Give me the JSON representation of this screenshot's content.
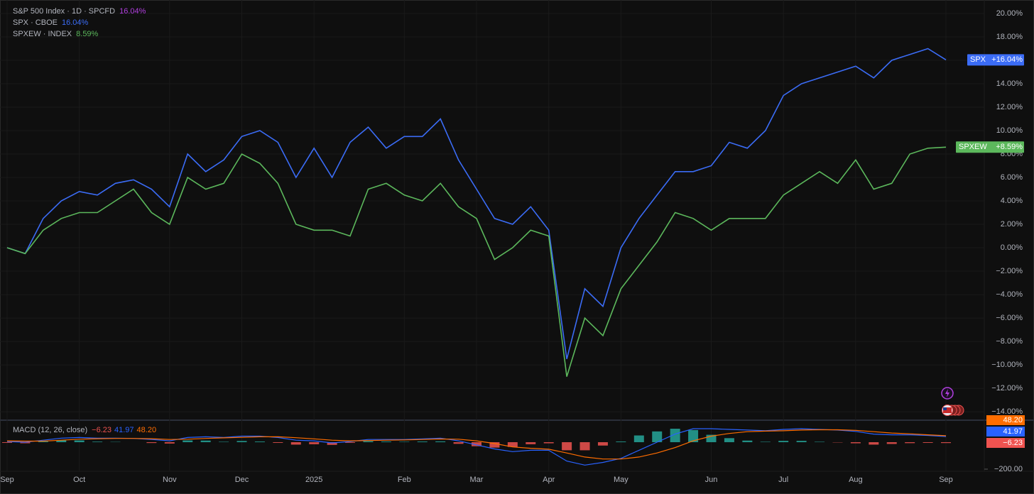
{
  "chart_data": [
    {
      "type": "line",
      "title": "S&P 500 Index · 1D · SPCFD",
      "title_value": 16.04,
      "title_value_label": "16.04%",
      "title_color": "#b23fe0",
      "categories": [
        "Sep",
        null,
        null,
        null,
        "Oct",
        null,
        null,
        null,
        null,
        "Nov",
        null,
        null,
        null,
        "Dec",
        null,
        null,
        null,
        "2025",
        null,
        null,
        null,
        null,
        "Feb",
        null,
        null,
        null,
        "Mar",
        null,
        null,
        null,
        "Apr",
        null,
        null,
        null,
        "May",
        null,
        null,
        null,
        null,
        "Jun",
        null,
        null,
        null,
        "Jul",
        null,
        null,
        null,
        "Aug",
        null,
        null,
        null,
        null,
        "Sep"
      ],
      "series": [
        {
          "name": "SPX",
          "source": "CBOE",
          "color": "#3b6cf6",
          "last_label": "16.04%",
          "badge_label": "+16.04%",
          "values": [
            0,
            -0.5,
            2.5,
            4,
            4.8,
            4.5,
            5.5,
            5.8,
            5,
            3.5,
            8,
            6.5,
            7.5,
            9.5,
            10,
            9,
            6,
            8.5,
            6,
            9,
            10.3,
            8.5,
            9.5,
            9.5,
            11,
            7.5,
            5,
            2.5,
            2,
            3.5,
            1.5,
            -9.5,
            -3.5,
            -5,
            0,
            2.5,
            4.5,
            6.5,
            6.5,
            7,
            9,
            8.5,
            10,
            13,
            14,
            14.5,
            15,
            15.5,
            14.5,
            16,
            16.5,
            17,
            16.04
          ]
        },
        {
          "name": "SPXEW",
          "source": "INDEX",
          "color": "#5cb85c",
          "last_label": "8.59%",
          "badge_label": "+8.59%",
          "values": [
            0,
            -0.5,
            1.5,
            2.5,
            3,
            3,
            4,
            5,
            3,
            2,
            6,
            5,
            5.5,
            8,
            7.2,
            5.5,
            2,
            1.5,
            1.5,
            1,
            5,
            5.5,
            4.5,
            4,
            5.5,
            3.5,
            2.5,
            -1,
            0,
            1.5,
            1,
            -11,
            -6,
            -7.5,
            -3.5,
            -1.5,
            0.5,
            3,
            2.5,
            1.5,
            2.5,
            2.5,
            2.5,
            4.5,
            5.5,
            6.5,
            5.5,
            7.5,
            5,
            5.5,
            8,
            8.5,
            8.59
          ]
        }
      ],
      "ylim": [
        -14.6,
        21.15
      ],
      "yticks": [
        {
          "value": -14,
          "label": "−14.00%"
        },
        {
          "value": -12,
          "label": "−12.00%"
        },
        {
          "value": -10,
          "label": "−10.00%"
        },
        {
          "value": -8,
          "label": "−8.00%"
        },
        {
          "value": -6,
          "label": "−6.00%"
        },
        {
          "value": -4,
          "label": "−4.00%"
        },
        {
          "value": -2,
          "label": "−2.00%"
        },
        {
          "value": 0,
          "label": "0.00%"
        },
        {
          "value": 2,
          "label": "2.00%"
        },
        {
          "value": 4,
          "label": "4.00%"
        },
        {
          "value": 6,
          "label": "6.00%"
        },
        {
          "value": 8,
          "label": "8.00%"
        },
        {
          "value": 10,
          "label": "10.00%"
        },
        {
          "value": 12,
          "label": "12.00%"
        },
        {
          "value": 14,
          "label": "14.00%"
        },
        {
          "value": 16,
          "label": "16.00%"
        },
        {
          "value": 18,
          "label": "18.00%"
        },
        {
          "value": 20,
          "label": "20.00%"
        }
      ],
      "grid": true
    },
    {
      "type": "macd",
      "title": "MACD (12, 26, close)",
      "histogram": {
        "positive_color": "#26a69a",
        "negative_color": "#ef5350",
        "last_label": "−6.23",
        "values": [
          -5,
          -8,
          7,
          15,
          13,
          4,
          2,
          0,
          -6,
          -10,
          13,
          12,
          3,
          9,
          5,
          -5,
          -18,
          -15,
          -20,
          -5,
          8,
          5,
          3,
          5,
          6,
          -12,
          -30,
          -40,
          -35,
          -15,
          -8,
          -60,
          -60,
          -25,
          5,
          50,
          80,
          100,
          90,
          55,
          30,
          12,
          3,
          10,
          10,
          3,
          -2,
          -8,
          -18,
          -13,
          -7,
          -5,
          -6.23
        ]
      },
      "macd_line": {
        "color": "#2962ff",
        "last_label": "41.97",
        "values": [
          5,
          0,
          15,
          30,
          35,
          30,
          30,
          28,
          20,
          10,
          35,
          40,
          35,
          45,
          45,
          35,
          15,
          10,
          -5,
          5,
          20,
          20,
          20,
          25,
          30,
          10,
          -20,
          -50,
          -70,
          -60,
          -60,
          -140,
          -170,
          -150,
          -120,
          -60,
          0,
          60,
          100,
          100,
          95,
          90,
          85,
          95,
          100,
          95,
          90,
          80,
          60,
          55,
          55,
          50,
          41.97
        ]
      },
      "signal_line": {
        "color": "#ff6d00",
        "last_label": "48.20",
        "values": [
          10,
          8,
          8,
          15,
          22,
          26,
          28,
          28,
          26,
          20,
          22,
          28,
          32,
          36,
          40,
          40,
          33,
          25,
          15,
          10,
          12,
          15,
          17,
          20,
          24,
          22,
          10,
          -10,
          -35,
          -45,
          -52,
          -80,
          -110,
          -125,
          -125,
          -110,
          -80,
          -40,
          10,
          45,
          65,
          78,
          82,
          85,
          90,
          92,
          92,
          88,
          78,
          68,
          62,
          55,
          48.2
        ]
      },
      "ylim": [
        -237,
        137
      ],
      "yticks": [
        {
          "value": -200,
          "label": "−200.00"
        }
      ]
    }
  ]
}
